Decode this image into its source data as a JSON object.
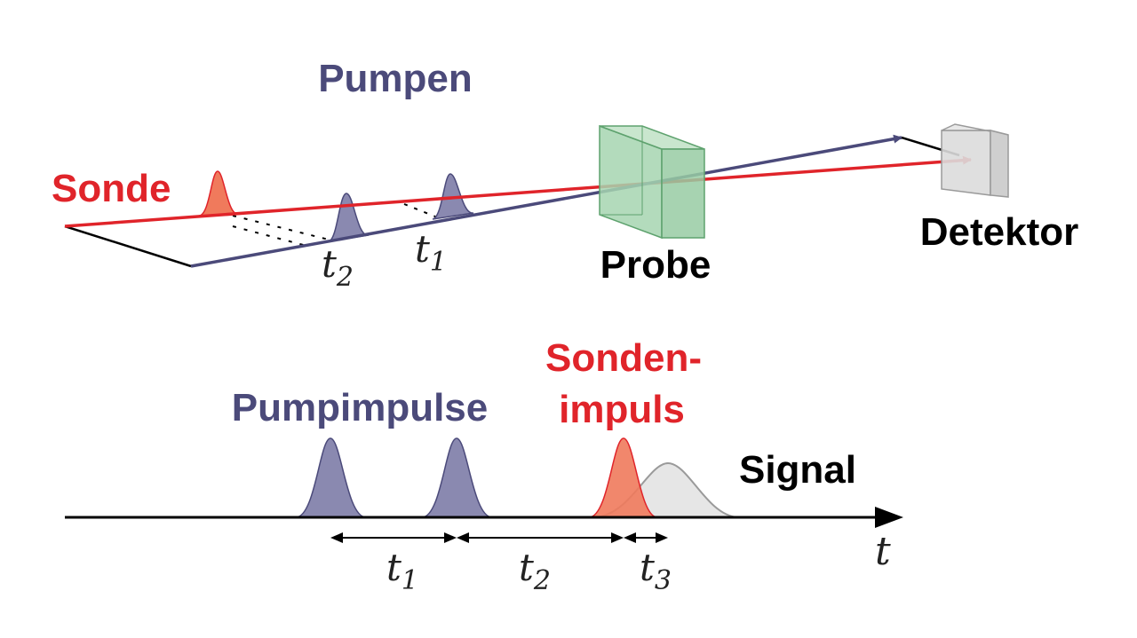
{
  "top": {
    "pump_label": "Pumpen",
    "probe_beam_label": "Sonde",
    "sample_label": "Probe",
    "detector_label": "Detektor",
    "t1_letter": "t",
    "t1_sub": "1",
    "t2_letter": "t",
    "t2_sub": "2"
  },
  "bottom": {
    "pump_pulses_label": "Pumpimpulse",
    "probe_pulse_label_line1": "Sonden-",
    "probe_pulse_label_line2": "impuls",
    "signal_label": "Signal",
    "axis_label": "t",
    "intervals": [
      {
        "letter": "t",
        "sub": "1"
      },
      {
        "letter": "t",
        "sub": "2"
      },
      {
        "letter": "t",
        "sub": "3"
      }
    ]
  },
  "colors": {
    "pump": "#4b4a7a",
    "pump_fill": "#8a89b0",
    "probe": "#e0242a",
    "probe_fill": "#f07a5c",
    "sample_fill": "#a6d5b0",
    "sample_stroke": "#5ea26e",
    "detector_fill": "#dcdcdc",
    "detector_stroke": "#9a9a9a",
    "signal_fill": "#e2e2e2",
    "signal_stroke": "#9a9a9a",
    "axis": "#000000"
  }
}
